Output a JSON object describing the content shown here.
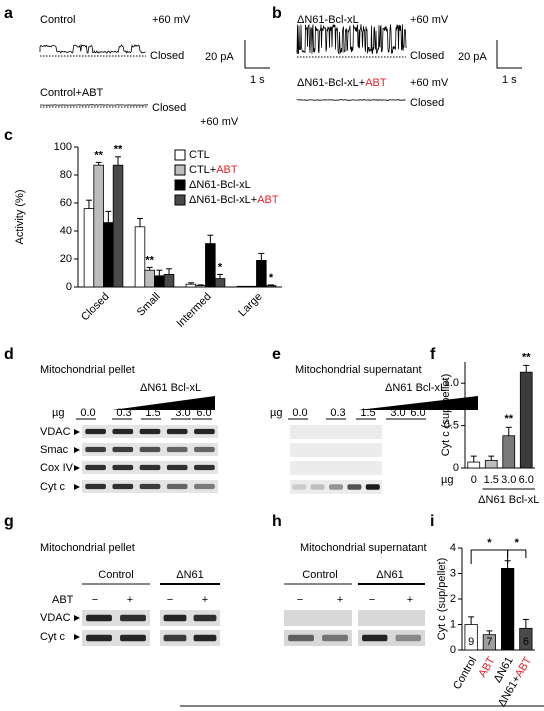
{
  "highlight": {
    "text": "ABT",
    "color": "#e3242b"
  },
  "panels": {
    "a": {
      "label": "a",
      "trace1": "Control",
      "v1": "+60 mV",
      "closed1": "Closed",
      "trace2": "Control+ABT",
      "v2": "+60 mV",
      "closed2": "Closed",
      "scale_y": "20 pA",
      "scale_x": "1 s"
    },
    "b": {
      "label": "b",
      "trace1": "ΔN61-Bcl-xL",
      "v1": "+60 mV",
      "closed1": "Closed",
      "trace2": "ΔN61-Bcl-xL+ABT",
      "v2": "+60 mV",
      "closed2": "Closed",
      "scale_y": "20 pA",
      "scale_x": "1 s"
    },
    "d": {
      "label": "d",
      "title": "Mitochondrial pellet",
      "treatment": "ΔN61 Bcl-xL",
      "unit": "µg",
      "doses": [
        "0.0",
        "0.3",
        "1.5",
        "3.0",
        "6.0"
      ],
      "rows": [
        "VDAC",
        "Smac",
        "Cox IV",
        "Cyt c"
      ]
    },
    "e": {
      "label": "e",
      "title": "Mitochondrial supernatant",
      "treatment": "ΔN61 Bcl-xL",
      "unit": "µg",
      "doses": [
        "0.0",
        "0.3",
        "1.5",
        "3.0",
        "6.0"
      ]
    },
    "g": {
      "label": "g",
      "title": "Mitochondrial pellet",
      "groups": [
        "Control",
        "ΔN61"
      ],
      "treatment": "ABT",
      "signs": [
        "−",
        "+",
        "−",
        "+"
      ],
      "rows": [
        "VDAC",
        "Cyt c"
      ]
    },
    "h": {
      "label": "h",
      "title": "Mitochondrial supernatant",
      "groups": [
        "Control",
        "ΔN61"
      ],
      "signs": [
        "−",
        "+",
        "−",
        "+"
      ]
    }
  },
  "chart_data": [
    {
      "type": "bar",
      "panel": "c",
      "ylabel": "Activity (%)",
      "categories": [
        "Closed",
        "Small",
        "Intermed",
        "Large"
      ],
      "series": [
        {
          "name": "CTL",
          "color": "#ffffff",
          "values": [
            56,
            43,
            2,
            0.5
          ],
          "errors": [
            6,
            6,
            1,
            0
          ]
        },
        {
          "name": "CTL+ABT",
          "color": "#bdbdbd",
          "values": [
            87,
            12,
            1,
            0.5
          ],
          "errors": [
            2,
            2,
            0.5,
            0
          ]
        },
        {
          "name": "ΔN61-Bcl-xL",
          "color": "#000000",
          "values": [
            46,
            8,
            31,
            19
          ],
          "errors": [
            8,
            4,
            6,
            5
          ]
        },
        {
          "name": "ΔN61-Bcl-xL+ABT",
          "color": "#4a4a4a",
          "values": [
            87,
            9,
            6,
            1
          ],
          "errors": [
            6,
            4,
            3,
            0.5
          ]
        }
      ],
      "annotations": [
        {
          "text": "**",
          "category": 0,
          "series": 1
        },
        {
          "text": "**",
          "category": 0,
          "series": 3
        },
        {
          "text": "**",
          "category": 1,
          "series": 1
        },
        {
          "text": "*",
          "category": 2,
          "series": 3
        },
        {
          "text": "*",
          "category": 3,
          "series": 3
        }
      ],
      "ylim": [
        0,
        100
      ],
      "yticks": [
        0,
        20,
        40,
        60,
        80,
        100
      ],
      "legend": "upper right"
    },
    {
      "type": "bar",
      "panel": "f",
      "ylabel": "Cyt c (sup/pellet)",
      "x_prefix": "µg",
      "xlabel": "ΔN61 Bcl-xL",
      "categories": [
        "0",
        "1.5",
        "3.0",
        "6.0"
      ],
      "values": [
        0.07,
        0.09,
        0.38,
        1.13
      ],
      "errors": [
        0.07,
        0.05,
        0.1,
        0.08
      ],
      "colors": [
        "#ffffff",
        "#bdbdbd",
        "#7a7a7a",
        "#3c3c3c"
      ],
      "annotations": [
        {
          "text": "**",
          "index": 2
        },
        {
          "text": "**",
          "index": 3
        }
      ],
      "ylim": [
        0,
        1.25
      ],
      "yticks": [
        0,
        0.5,
        {
          "value": 1,
          "label": "1.0"
        }
      ]
    },
    {
      "type": "bar",
      "panel": "i",
      "ylabel": "Cyt c (sup/pellet)",
      "categories": [
        "Control",
        "ABT",
        "ΔN61",
        "ΔN61+ABT"
      ],
      "values": [
        1.0,
        0.6,
        3.2,
        0.85
      ],
      "errors": [
        0.3,
        0.15,
        0.3,
        0.35
      ],
      "colors": [
        "#ffffff",
        "#9e9e9e",
        "#000000",
        "#4a4a4a"
      ],
      "n": [
        9,
        7,
        8,
        6
      ],
      "brackets": [
        {
          "text": "*",
          "from": 0,
          "to": 2
        },
        {
          "text": "*",
          "from": 2,
          "to": 3
        }
      ],
      "ylim": [
        0,
        4
      ],
      "yticks": [
        0,
        1,
        2,
        3,
        4
      ]
    }
  ]
}
